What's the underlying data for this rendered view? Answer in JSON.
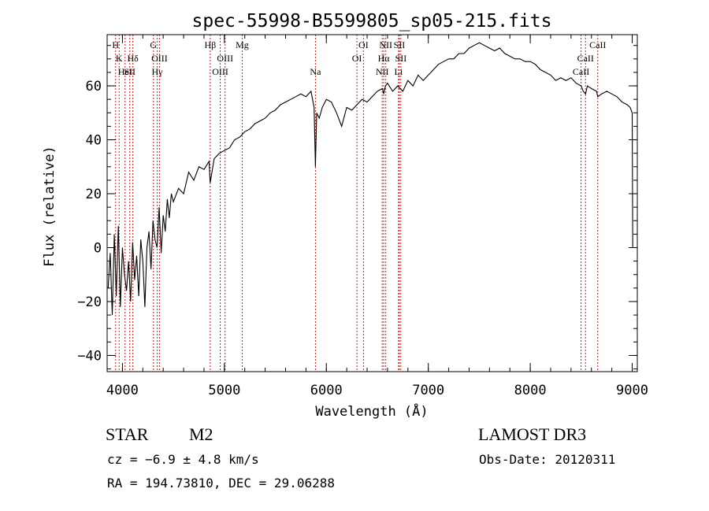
{
  "chart_data": {
    "type": "line",
    "title": "spec-55998-B5599805_sp05-215.fits",
    "xlabel": "Wavelength (Å)",
    "ylabel": "Flux (relative)",
    "xlim": [
      3850,
      9050
    ],
    "ylim": [
      -46,
      79
    ],
    "x_ticks": [
      4000,
      5000,
      6000,
      7000,
      8000,
      9000
    ],
    "y_ticks": [
      -40,
      -20,
      0,
      20,
      40,
      60
    ],
    "x_minor_step": 200,
    "y_minor_step": 5,
    "grid": false,
    "series": [
      {
        "name": "spectrum",
        "x": [
          3860,
          3880,
          3900,
          3920,
          3940,
          3960,
          3980,
          4000,
          4020,
          4040,
          4060,
          4080,
          4100,
          4120,
          4140,
          4160,
          4180,
          4200,
          4220,
          4240,
          4260,
          4280,
          4300,
          4320,
          4340,
          4360,
          4380,
          4400,
          4420,
          4440,
          4460,
          4480,
          4500,
          4550,
          4600,
          4650,
          4700,
          4750,
          4800,
          4850,
          4861,
          4900,
          4950,
          5000,
          5050,
          5100,
          5150,
          5200,
          5250,
          5300,
          5350,
          5400,
          5450,
          5500,
          5550,
          5600,
          5650,
          5700,
          5750,
          5800,
          5850,
          5880,
          5893,
          5905,
          5930,
          5960,
          6000,
          6050,
          6100,
          6150,
          6200,
          6250,
          6300,
          6350,
          6400,
          6450,
          6500,
          6550,
          6563,
          6580,
          6600,
          6650,
          6700,
          6750,
          6800,
          6850,
          6900,
          6950,
          7000,
          7050,
          7100,
          7150,
          7200,
          7250,
          7300,
          7350,
          7400,
          7450,
          7500,
          7550,
          7600,
          7650,
          7700,
          7750,
          7800,
          7850,
          7900,
          7950,
          8000,
          8050,
          8100,
          8150,
          8200,
          8250,
          8300,
          8350,
          8400,
          8450,
          8500,
          8520,
          8542,
          8560,
          8600,
          8650,
          8662,
          8700,
          8750,
          8800,
          8850,
          8900,
          8950,
          8980,
          9000,
          9005
        ],
        "y": [
          -15,
          -2,
          -25,
          5,
          -18,
          8,
          -22,
          0,
          -10,
          -16,
          -5,
          -20,
          2,
          -12,
          -3,
          -18,
          3,
          -5,
          -22,
          0,
          6,
          -8,
          10,
          3,
          0,
          15,
          -2,
          12,
          6,
          18,
          11,
          20,
          17,
          22,
          20,
          28,
          25,
          30,
          29,
          32,
          24,
          33,
          35,
          36,
          37,
          40,
          41,
          43,
          44,
          46,
          47,
          48,
          50,
          51,
          53,
          54,
          55,
          56,
          57,
          56,
          58,
          52,
          30,
          50,
          48,
          52,
          55,
          54,
          50,
          45,
          52,
          51,
          53,
          55,
          54,
          56,
          58,
          59,
          57,
          60,
          61,
          58,
          60,
          58,
          62,
          60,
          64,
          62,
          64,
          66,
          68,
          69,
          70,
          70,
          72,
          72,
          74,
          75,
          76,
          75,
          74,
          73,
          74,
          72,
          71,
          70,
          70,
          69,
          69,
          68,
          66,
          65,
          64,
          62,
          63,
          62,
          63,
          61,
          60,
          58,
          57,
          60,
          59,
          58,
          56,
          57,
          58,
          57,
          56,
          54,
          53,
          52,
          50,
          0
        ]
      }
    ],
    "line_annotations": [
      {
        "label": "H",
        "wavelength": 3933,
        "row": 0
      },
      {
        "label": "K",
        "wavelength": 3968,
        "row": 1
      },
      {
        "label": "HeI",
        "wavelength": 4026,
        "row": 2
      },
      {
        "label": "SII",
        "wavelength": 4072,
        "row": 2
      },
      {
        "label": "Hδ",
        "wavelength": 4102,
        "row": 1
      },
      {
        "label": "G",
        "wavelength": 4304,
        "row": 0
      },
      {
        "label": "OIII",
        "wavelength": 4363,
        "row": 1
      },
      {
        "label": "Hγ",
        "wavelength": 4341,
        "row": 2
      },
      {
        "label": "Hβ",
        "wavelength": 4861,
        "row": 0
      },
      {
        "label": "OIII",
        "wavelength": 4959,
        "row": 2
      },
      {
        "label": "OIII",
        "wavelength": 5007,
        "row": 1
      },
      {
        "label": "Mg",
        "wavelength": 5175,
        "row": 0
      },
      {
        "label": "Na",
        "wavelength": 5893,
        "row": 2
      },
      {
        "label": "OI",
        "wavelength": 6300,
        "row": 1
      },
      {
        "label": "OI",
        "wavelength": 6364,
        "row": 0
      },
      {
        "label": "NII",
        "wavelength": 6548,
        "row": 2
      },
      {
        "label": "Hα",
        "wavelength": 6563,
        "row": 1
      },
      {
        "label": "NII",
        "wavelength": 6583,
        "row": 0
      },
      {
        "label": "Li",
        "wavelength": 6708,
        "row": 2
      },
      {
        "label": "SII",
        "wavelength": 6716,
        "row": 0
      },
      {
        "label": "SII",
        "wavelength": 6731,
        "row": 1
      },
      {
        "label": "CaII",
        "wavelength": 8498,
        "row": 2
      },
      {
        "label": "CaII",
        "wavelength": 8542,
        "row": 1
      },
      {
        "label": "CaII",
        "wavelength": 8662,
        "row": 0
      }
    ]
  },
  "info": {
    "object_class": "STAR",
    "subclass": "M2",
    "survey": "LAMOST DR3",
    "cz": "cz = −6.9 ± 4.8 km/s",
    "obs_date": "Obs-Date: 20120311",
    "coords": "RA = 194.73810, DEC =  29.06288"
  },
  "colors": {
    "axes": "#000000",
    "spectrum": "#000000",
    "line_markers": "#cc2222",
    "background": "#ffffff"
  }
}
